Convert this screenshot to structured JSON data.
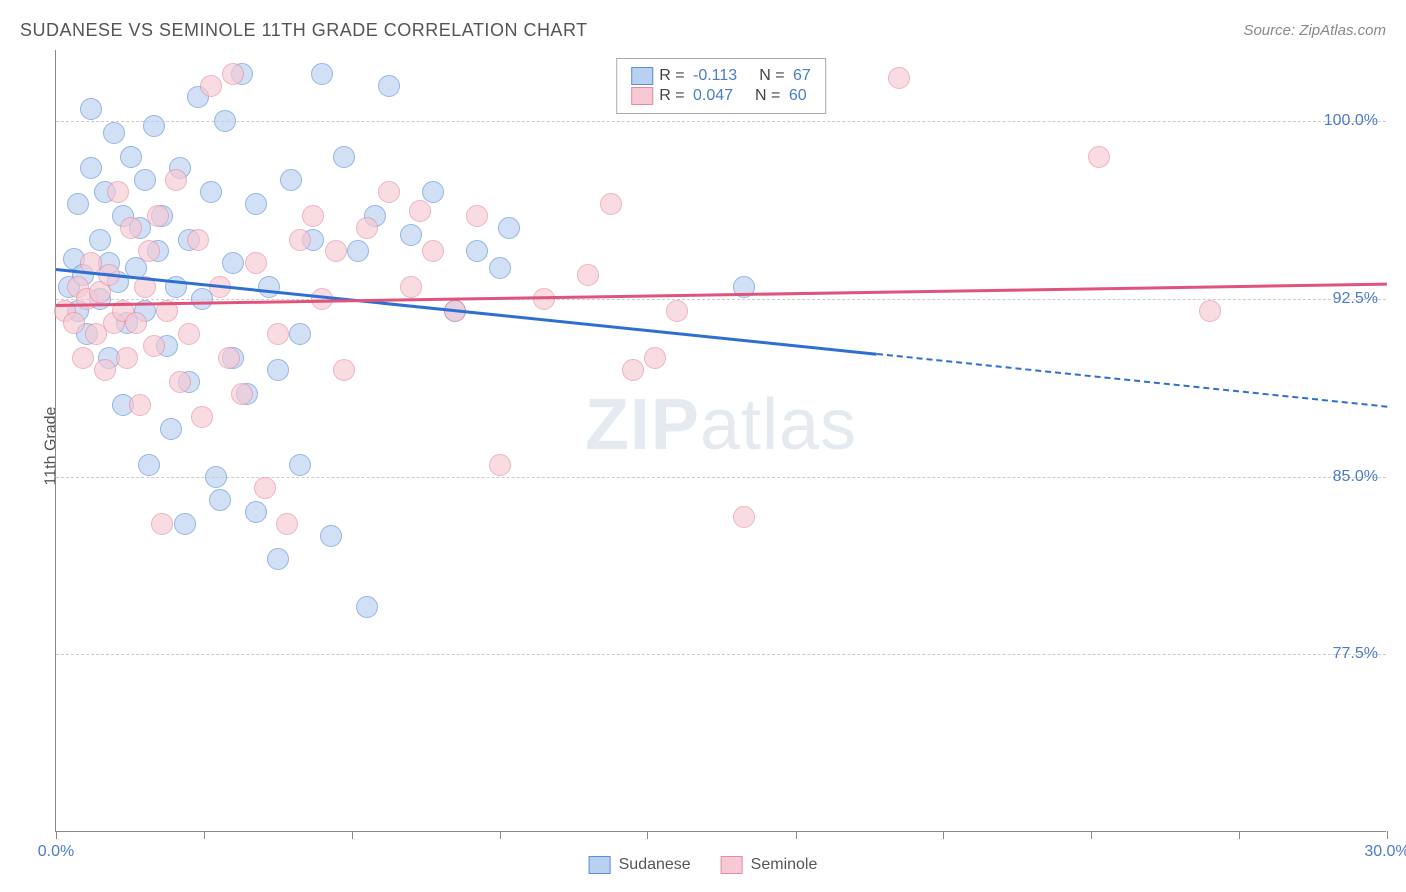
{
  "header": {
    "title": "SUDANESE VS SEMINOLE 11TH GRADE CORRELATION CHART",
    "source": "Source: ZipAtlas.com"
  },
  "ylabel": "11th Grade",
  "watermark": {
    "bold_part": "ZIP",
    "rest": "atlas"
  },
  "chart": {
    "type": "scatter",
    "background_color": "#ffffff",
    "grid_color": "#cccccc",
    "axis_color": "#888888",
    "label_color": "#4a7bc8",
    "xlim": [
      0,
      30
    ],
    "ylim": [
      70,
      103
    ],
    "xticks": [
      0,
      3.33,
      6.67,
      10,
      13.33,
      16.67,
      20,
      23.33,
      26.67,
      30
    ],
    "xtick_labels": {
      "0": "0.0%",
      "30": "30.0%"
    },
    "yticks": [
      77.5,
      85.0,
      92.5,
      100.0
    ],
    "ytick_labels": [
      "77.5%",
      "85.0%",
      "92.5%",
      "100.0%"
    ],
    "point_radius": 11,
    "point_opacity": 0.65,
    "series": [
      {
        "name": "Sudanese",
        "fill_color": "#b9d1f0",
        "stroke_color": "#5b8fd6",
        "line_color": "#2e6fd1",
        "r_value": "-0.113",
        "n_value": "67",
        "trend": {
          "x0": 0,
          "y0": 93.8,
          "x1": 30,
          "y1": 88.0,
          "solid_until_x": 18.5
        },
        "points": [
          [
            0.3,
            93.0
          ],
          [
            0.4,
            94.2
          ],
          [
            0.5,
            92.0
          ],
          [
            0.5,
            96.5
          ],
          [
            0.6,
            93.5
          ],
          [
            0.7,
            91.0
          ],
          [
            0.8,
            98.0
          ],
          [
            0.8,
            100.5
          ],
          [
            1.0,
            95.0
          ],
          [
            1.0,
            92.5
          ],
          [
            1.1,
            97.0
          ],
          [
            1.2,
            90.0
          ],
          [
            1.2,
            94.0
          ],
          [
            1.3,
            99.5
          ],
          [
            1.4,
            93.2
          ],
          [
            1.5,
            96.0
          ],
          [
            1.5,
            88.0
          ],
          [
            1.6,
            91.5
          ],
          [
            1.7,
            98.5
          ],
          [
            1.8,
            93.8
          ],
          [
            1.9,
            95.5
          ],
          [
            2.0,
            97.5
          ],
          [
            2.0,
            92.0
          ],
          [
            2.1,
            85.5
          ],
          [
            2.2,
            99.8
          ],
          [
            2.3,
            94.5
          ],
          [
            2.4,
            96.0
          ],
          [
            2.5,
            90.5
          ],
          [
            2.6,
            87.0
          ],
          [
            2.7,
            93.0
          ],
          [
            2.8,
            98.0
          ],
          [
            2.9,
            83.0
          ],
          [
            3.0,
            95.0
          ],
          [
            3.0,
            89.0
          ],
          [
            3.2,
            101.0
          ],
          [
            3.3,
            92.5
          ],
          [
            3.5,
            97.0
          ],
          [
            3.6,
            85.0
          ],
          [
            3.7,
            84.0
          ],
          [
            3.8,
            100.0
          ],
          [
            4.0,
            94.0
          ],
          [
            4.0,
            90.0
          ],
          [
            4.2,
            102.0
          ],
          [
            4.3,
            88.5
          ],
          [
            4.5,
            96.5
          ],
          [
            4.5,
            83.5
          ],
          [
            4.8,
            93.0
          ],
          [
            5.0,
            89.5
          ],
          [
            5.0,
            81.5
          ],
          [
            5.3,
            97.5
          ],
          [
            5.5,
            91.0
          ],
          [
            5.5,
            85.5
          ],
          [
            5.8,
            95.0
          ],
          [
            6.0,
            102.0
          ],
          [
            6.2,
            82.5
          ],
          [
            6.5,
            98.5
          ],
          [
            6.8,
            94.5
          ],
          [
            7.0,
            79.5
          ],
          [
            7.2,
            96.0
          ],
          [
            7.5,
            101.5
          ],
          [
            8.0,
            95.2
          ],
          [
            8.5,
            97.0
          ],
          [
            9.0,
            92.0
          ],
          [
            9.5,
            94.5
          ],
          [
            10.0,
            93.8
          ],
          [
            10.2,
            95.5
          ],
          [
            15.5,
            93.0
          ]
        ]
      },
      {
        "name": "Seminole",
        "fill_color": "#f6c9d4",
        "stroke_color": "#e48ca4",
        "line_color": "#e0537c",
        "r_value": "0.047",
        "n_value": "60",
        "trend": {
          "x0": 0,
          "y0": 92.3,
          "x1": 30,
          "y1": 93.2,
          "solid_until_x": 30
        },
        "points": [
          [
            0.2,
            92.0
          ],
          [
            0.4,
            91.5
          ],
          [
            0.5,
            93.0
          ],
          [
            0.6,
            90.0
          ],
          [
            0.7,
            92.5
          ],
          [
            0.8,
            94.0
          ],
          [
            0.9,
            91.0
          ],
          [
            1.0,
            92.8
          ],
          [
            1.1,
            89.5
          ],
          [
            1.2,
            93.5
          ],
          [
            1.3,
            91.5
          ],
          [
            1.4,
            97.0
          ],
          [
            1.5,
            92.0
          ],
          [
            1.6,
            90.0
          ],
          [
            1.7,
            95.5
          ],
          [
            1.8,
            91.5
          ],
          [
            1.9,
            88.0
          ],
          [
            2.0,
            93.0
          ],
          [
            2.1,
            94.5
          ],
          [
            2.2,
            90.5
          ],
          [
            2.3,
            96.0
          ],
          [
            2.4,
            83.0
          ],
          [
            2.5,
            92.0
          ],
          [
            2.7,
            97.5
          ],
          [
            2.8,
            89.0
          ],
          [
            3.0,
            91.0
          ],
          [
            3.2,
            95.0
          ],
          [
            3.3,
            87.5
          ],
          [
            3.5,
            101.5
          ],
          [
            3.7,
            93.0
          ],
          [
            3.9,
            90.0
          ],
          [
            4.0,
            102.0
          ],
          [
            4.2,
            88.5
          ],
          [
            4.5,
            94.0
          ],
          [
            4.7,
            84.5
          ],
          [
            5.0,
            91.0
          ],
          [
            5.2,
            83.0
          ],
          [
            5.5,
            95.0
          ],
          [
            5.8,
            96.0
          ],
          [
            6.0,
            92.5
          ],
          [
            6.3,
            94.5
          ],
          [
            6.5,
            89.5
          ],
          [
            7.0,
            95.5
          ],
          [
            7.5,
            97.0
          ],
          [
            8.0,
            93.0
          ],
          [
            8.2,
            96.2
          ],
          [
            8.5,
            94.5
          ],
          [
            9.0,
            92.0
          ],
          [
            9.5,
            96.0
          ],
          [
            10.0,
            85.5
          ],
          [
            11.0,
            92.5
          ],
          [
            12.0,
            93.5
          ],
          [
            12.5,
            96.5
          ],
          [
            13.0,
            89.5
          ],
          [
            13.5,
            90.0
          ],
          [
            14.0,
            92.0
          ],
          [
            15.5,
            83.3
          ],
          [
            19.0,
            101.8
          ],
          [
            23.5,
            98.5
          ],
          [
            26.0,
            92.0
          ]
        ]
      }
    ]
  },
  "bottom_legend": [
    {
      "label": "Sudanese",
      "fill": "#b9d1f0",
      "stroke": "#5b8fd6"
    },
    {
      "label": "Seminole",
      "fill": "#f6c9d4",
      "stroke": "#e48ca4"
    }
  ]
}
